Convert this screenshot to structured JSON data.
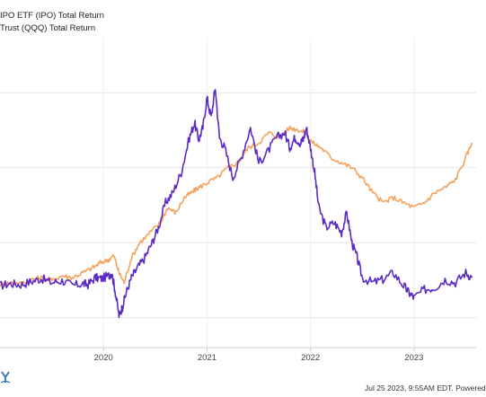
{
  "legend": {
    "items": [
      {
        "label": "IPO ETF (IPO) Total Return",
        "color": "#5b2bc4"
      },
      {
        "label": "Trust (QQQ) Total Return",
        "color": "#f5a25d"
      }
    ]
  },
  "footer": {
    "text": "Jul 25 2023, 9:55AM EDT. Powered"
  },
  "logo": {
    "icon": "ycharts-logo-icon"
  },
  "chart_data": {
    "type": "line",
    "title": "",
    "xlabel": "",
    "ylabel": "",
    "x_ticks": [
      "2020",
      "2021",
      "2022",
      "2023"
    ],
    "x_range": [
      2019.0,
      2023.6
    ],
    "y_range": [
      -60,
      250
    ],
    "grid": true,
    "legend_position": "top-left",
    "series": [
      {
        "name": "IPO ETF (IPO) Total Return",
        "color": "#5b2bc4",
        "x": [
          2019.0,
          2019.1,
          2019.2,
          2019.3,
          2019.4,
          2019.5,
          2019.6,
          2019.7,
          2019.8,
          2019.85,
          2019.92,
          2019.98,
          2020.05,
          2020.08,
          2020.11,
          2020.15,
          2020.18,
          2020.22,
          2020.27,
          2020.33,
          2020.4,
          2020.47,
          2020.53,
          2020.6,
          2020.67,
          2020.75,
          2020.83,
          2020.88,
          2020.92,
          2020.96,
          2021.0,
          2021.04,
          2021.08,
          2021.12,
          2021.17,
          2021.25,
          2021.33,
          2021.42,
          2021.5,
          2021.58,
          2021.67,
          2021.75,
          2021.8,
          2021.85,
          2021.9,
          2021.93,
          2021.96,
          2022.0,
          2022.04,
          2022.08,
          2022.15,
          2022.23,
          2022.3,
          2022.35,
          2022.4,
          2022.45,
          2022.5,
          2022.6,
          2022.7,
          2022.8,
          2022.9,
          2022.95,
          2023.0,
          2023.1,
          2023.2,
          2023.3,
          2023.4,
          2023.5,
          2023.56
        ],
        "y": [
          2,
          4,
          3,
          6,
          9,
          5,
          7,
          2,
          4,
          3,
          10,
          9,
          12,
          15,
          -2,
          -28,
          -20,
          -5,
          10,
          20,
          30,
          45,
          60,
          85,
          95,
          115,
          150,
          165,
          148,
          160,
          190,
          170,
          200,
          150,
          140,
          110,
          130,
          160,
          125,
          135,
          150,
          155,
          140,
          150,
          145,
          148,
          160,
          140,
          115,
          80,
          60,
          65,
          55,
          75,
          45,
          30,
          10,
          5,
          8,
          15,
          2,
          -5,
          -10,
          -2,
          0,
          8,
          5,
          15,
          10
        ]
      },
      {
        "name": "Trust (QQQ) Total Return",
        "color": "#f5a25d",
        "x": [
          2019.0,
          2019.1,
          2019.2,
          2019.3,
          2019.4,
          2019.5,
          2019.6,
          2019.7,
          2019.8,
          2019.9,
          2019.97,
          2020.05,
          2020.1,
          2020.15,
          2020.2,
          2020.27,
          2020.35,
          2020.45,
          2020.55,
          2020.62,
          2020.7,
          2020.78,
          2020.85,
          2020.92,
          2021.0,
          2021.1,
          2021.2,
          2021.3,
          2021.4,
          2021.5,
          2021.6,
          2021.7,
          2021.8,
          2021.88,
          2021.95,
          2022.02,
          2022.1,
          2022.2,
          2022.3,
          2022.4,
          2022.5,
          2022.6,
          2022.7,
          2022.8,
          2022.9,
          2023.0,
          2023.1,
          2023.2,
          2023.3,
          2023.4,
          2023.5,
          2023.56
        ],
        "y": [
          3,
          5,
          4,
          8,
          10,
          7,
          12,
          10,
          15,
          20,
          25,
          28,
          32,
          15,
          5,
          30,
          45,
          55,
          65,
          80,
          75,
          90,
          95,
          100,
          105,
          110,
          120,
          125,
          140,
          145,
          155,
          150,
          160,
          158,
          155,
          145,
          140,
          130,
          125,
          120,
          110,
          95,
          85,
          90,
          85,
          80,
          85,
          95,
          100,
          108,
          130,
          145
        ]
      }
    ]
  }
}
